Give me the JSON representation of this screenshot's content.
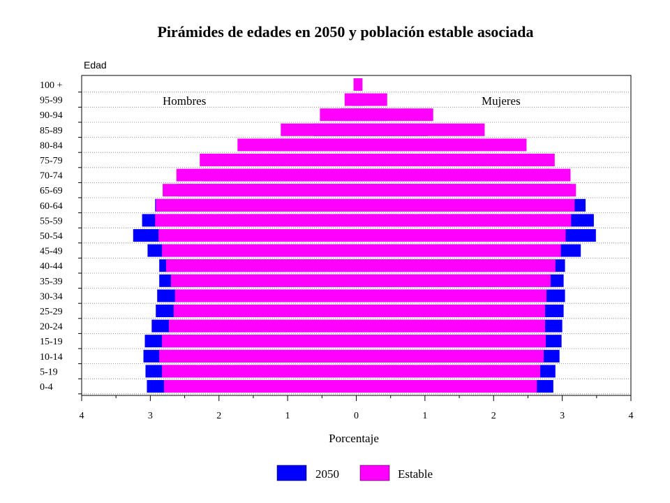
{
  "chart_data": {
    "type": "bar",
    "orientation": "horizontal-pyramid",
    "title": "Pirámides de edades en 2050 y población estable asociada",
    "xlabel": "Porcentaje",
    "ylabel": "Edad",
    "left_label": "Hombres",
    "right_label": "Mujeres",
    "xlim": [
      -4,
      4
    ],
    "x_ticks": [
      "4",
      "3",
      "2",
      "1",
      "0",
      "1",
      "2",
      "3",
      "4"
    ],
    "grid": "dotted horizontal",
    "legend_position": "bottom",
    "categories": [
      "0-4",
      "5-19",
      "10-14",
      "15-19",
      "20-24",
      "25-29",
      "30-34",
      "35-39",
      "40-44",
      "45-49",
      "50-54",
      "55-59",
      "60-64",
      "65-69",
      "70-74",
      "75-79",
      "80-84",
      "85-89",
      "90-94",
      "95-99",
      "100 +"
    ],
    "series": [
      {
        "name": "2050",
        "color": "#0000ff",
        "men": [
          3.05,
          3.07,
          3.1,
          3.08,
          2.98,
          2.92,
          2.9,
          2.87,
          2.87,
          3.04,
          3.25,
          3.12,
          2.93,
          2.6,
          2.24,
          1.8,
          1.2,
          0.62,
          0.23,
          0.06,
          0.02
        ],
        "women": [
          2.87,
          2.9,
          2.96,
          2.99,
          3.0,
          3.02,
          3.04,
          3.02,
          3.04,
          3.27,
          3.49,
          3.46,
          3.34,
          3.12,
          2.82,
          2.37,
          1.73,
          1.04,
          0.45,
          0.12,
          0.03
        ]
      },
      {
        "name": "Estable",
        "color": "#ff00ff",
        "men": [
          2.8,
          2.83,
          2.87,
          2.83,
          2.73,
          2.66,
          2.64,
          2.7,
          2.77,
          2.83,
          2.88,
          2.93,
          2.92,
          2.82,
          2.62,
          2.28,
          1.73,
          1.1,
          0.53,
          0.17,
          0.04
        ],
        "women": [
          2.63,
          2.68,
          2.73,
          2.76,
          2.75,
          2.75,
          2.77,
          2.83,
          2.9,
          2.98,
          3.05,
          3.13,
          3.18,
          3.2,
          3.12,
          2.89,
          2.48,
          1.87,
          1.12,
          0.45,
          0.09
        ]
      }
    ]
  }
}
